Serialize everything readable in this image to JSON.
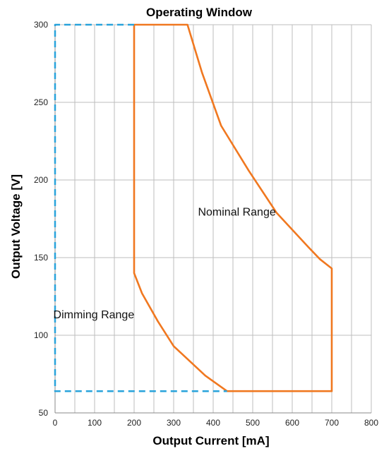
{
  "chart_data": {
    "type": "line",
    "title": "Operating Window",
    "xlabel": "Output Current [mA]",
    "ylabel": "Output Voltage [V]",
    "xlim": [
      0,
      800
    ],
    "ylim": [
      50,
      300
    ],
    "xticks": [
      0,
      100,
      200,
      300,
      400,
      500,
      600,
      700,
      800
    ],
    "yticks": [
      50,
      100,
      150,
      200,
      250,
      300
    ],
    "x_minor_step": 50,
    "grid": true,
    "series": [
      {
        "color": "#f07820",
        "style": "solid",
        "points": [
          [
            200,
            300
          ],
          [
            335,
            300
          ],
          [
            372,
            269
          ],
          [
            420,
            235
          ],
          [
            490,
            206
          ],
          [
            560,
            179
          ],
          [
            640,
            157
          ],
          [
            670,
            149
          ],
          [
            700,
            143
          ],
          [
            700,
            64
          ],
          [
            435,
            64
          ],
          [
            380,
            74
          ],
          [
            300,
            93
          ],
          [
            260,
            109
          ],
          [
            220,
            127
          ],
          [
            200,
            140
          ],
          [
            200,
            300
          ]
        ]
      },
      {
        "color": "#29a3db",
        "style": "dashed",
        "points": [
          [
            200,
            300
          ],
          [
            0,
            300
          ],
          [
            0,
            64
          ],
          [
            435,
            64
          ]
        ]
      }
    ],
    "annotations": [
      {
        "text": "Nominal Range",
        "x": 460,
        "y": 177
      },
      {
        "text": "Dimming Range",
        "x": 98,
        "y": 111
      }
    ]
  }
}
